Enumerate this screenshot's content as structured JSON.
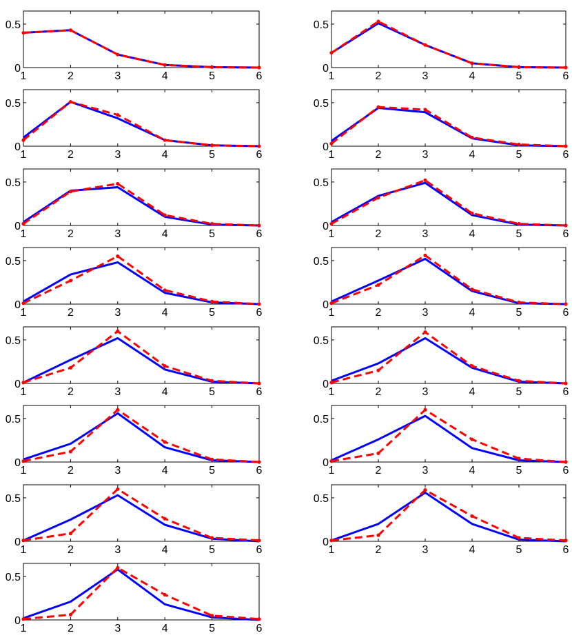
{
  "chart_data": [
    {
      "type": "line",
      "x": [
        1,
        2,
        3,
        4,
        5,
        6
      ],
      "ylim": [
        0,
        0.65
      ],
      "yticks": [
        0,
        0.5
      ],
      "xticks": [
        1,
        2,
        3,
        4,
        5,
        6
      ],
      "series": [
        {
          "color": "#0000ff",
          "linestyle": "solid",
          "values": [
            0.4,
            0.43,
            0.15,
            0.03,
            0.005,
            0.0
          ]
        },
        {
          "color": "#ff0000",
          "linestyle": "dashed",
          "values": [
            0.4,
            0.43,
            0.15,
            0.03,
            0.005,
            0.0
          ]
        }
      ]
    },
    {
      "type": "line",
      "x": [
        1,
        2,
        3,
        4,
        5,
        6
      ],
      "ylim": [
        0,
        0.65
      ],
      "yticks": [
        0,
        0.5
      ],
      "xticks": [
        1,
        2,
        3,
        4,
        5,
        6
      ],
      "series": [
        {
          "color": "#0000ff",
          "linestyle": "solid",
          "values": [
            0.17,
            0.51,
            0.26,
            0.05,
            0.005,
            0.0
          ]
        },
        {
          "color": "#ff0000",
          "linestyle": "dashed",
          "values": [
            0.17,
            0.53,
            0.26,
            0.05,
            0.005,
            0.0
          ]
        }
      ]
    },
    {
      "type": "line",
      "x": [
        1,
        2,
        3,
        4,
        5,
        6
      ],
      "ylim": [
        0,
        0.65
      ],
      "yticks": [
        0,
        0.5
      ],
      "xticks": [
        1,
        2,
        3,
        4,
        5,
        6
      ],
      "series": [
        {
          "color": "#0000ff",
          "linestyle": "solid",
          "values": [
            0.1,
            0.51,
            0.32,
            0.07,
            0.01,
            0.0
          ]
        },
        {
          "color": "#ff0000",
          "linestyle": "dashed",
          "values": [
            0.07,
            0.51,
            0.36,
            0.07,
            0.01,
            0.0
          ]
        }
      ]
    },
    {
      "type": "line",
      "x": [
        1,
        2,
        3,
        4,
        5,
        6
      ],
      "ylim": [
        0,
        0.65
      ],
      "yticks": [
        0,
        0.5
      ],
      "xticks": [
        1,
        2,
        3,
        4,
        5,
        6
      ],
      "series": [
        {
          "color": "#0000ff",
          "linestyle": "solid",
          "values": [
            0.06,
            0.44,
            0.39,
            0.09,
            0.01,
            0.0
          ]
        },
        {
          "color": "#ff0000",
          "linestyle": "dashed",
          "values": [
            0.03,
            0.45,
            0.42,
            0.1,
            0.02,
            0.0
          ]
        }
      ]
    },
    {
      "type": "line",
      "x": [
        1,
        2,
        3,
        4,
        5,
        6
      ],
      "ylim": [
        0,
        0.65
      ],
      "yticks": [
        0,
        0.5
      ],
      "xticks": [
        1,
        2,
        3,
        4,
        5,
        6
      ],
      "series": [
        {
          "color": "#0000ff",
          "linestyle": "solid",
          "values": [
            0.04,
            0.4,
            0.44,
            0.1,
            0.01,
            0.0
          ]
        },
        {
          "color": "#ff0000",
          "linestyle": "dashed",
          "values": [
            0.02,
            0.39,
            0.48,
            0.12,
            0.02,
            0.0
          ]
        }
      ]
    },
    {
      "type": "line",
      "x": [
        1,
        2,
        3,
        4,
        5,
        6
      ],
      "ylim": [
        0,
        0.65
      ],
      "yticks": [
        0,
        0.5
      ],
      "xticks": [
        1,
        2,
        3,
        4,
        5,
        6
      ],
      "series": [
        {
          "color": "#0000ff",
          "linestyle": "solid",
          "values": [
            0.04,
            0.34,
            0.49,
            0.12,
            0.01,
            0.0
          ]
        },
        {
          "color": "#ff0000",
          "linestyle": "dashed",
          "values": [
            0.02,
            0.32,
            0.52,
            0.14,
            0.02,
            0.0
          ]
        }
      ]
    },
    {
      "type": "line",
      "x": [
        1,
        2,
        3,
        4,
        5,
        6
      ],
      "ylim": [
        0,
        0.65
      ],
      "yticks": [
        0,
        0.5
      ],
      "xticks": [
        1,
        2,
        3,
        4,
        5,
        6
      ],
      "series": [
        {
          "color": "#0000ff",
          "linestyle": "solid",
          "values": [
            0.03,
            0.34,
            0.48,
            0.13,
            0.02,
            0.0
          ]
        },
        {
          "color": "#ff0000",
          "linestyle": "dashed",
          "values": [
            0.01,
            0.27,
            0.55,
            0.16,
            0.03,
            0.0
          ]
        }
      ]
    },
    {
      "type": "line",
      "x": [
        1,
        2,
        3,
        4,
        5,
        6
      ],
      "ylim": [
        0,
        0.65
      ],
      "yticks": [
        0,
        0.5
      ],
      "xticks": [
        1,
        2,
        3,
        4,
        5,
        6
      ],
      "series": [
        {
          "color": "#0000ff",
          "linestyle": "solid",
          "values": [
            0.03,
            0.27,
            0.52,
            0.15,
            0.01,
            0.0
          ]
        },
        {
          "color": "#ff0000",
          "linestyle": "dashed",
          "values": [
            0.01,
            0.22,
            0.56,
            0.17,
            0.02,
            0.0
          ]
        }
      ]
    },
    {
      "type": "line",
      "x": [
        1,
        2,
        3,
        4,
        5,
        6
      ],
      "ylim": [
        0,
        0.65
      ],
      "yticks": [
        0,
        0.5
      ],
      "xticks": [
        1,
        2,
        3,
        4,
        5,
        6
      ],
      "series": [
        {
          "color": "#0000ff",
          "linestyle": "solid",
          "values": [
            0.01,
            0.27,
            0.52,
            0.16,
            0.02,
            0.0
          ]
        },
        {
          "color": "#ff0000",
          "linestyle": "dashed",
          "values": [
            0.01,
            0.18,
            0.6,
            0.2,
            0.03,
            0.0
          ]
        }
      ]
    },
    {
      "type": "line",
      "x": [
        1,
        2,
        3,
        4,
        5,
        6
      ],
      "ylim": [
        0,
        0.65
      ],
      "yticks": [
        0,
        0.5
      ],
      "xticks": [
        1,
        2,
        3,
        4,
        5,
        6
      ],
      "series": [
        {
          "color": "#0000ff",
          "linestyle": "solid",
          "values": [
            0.03,
            0.23,
            0.52,
            0.18,
            0.02,
            0.0
          ]
        },
        {
          "color": "#ff0000",
          "linestyle": "dashed",
          "values": [
            0.01,
            0.15,
            0.59,
            0.2,
            0.03,
            0.0
          ]
        }
      ]
    },
    {
      "type": "line",
      "x": [
        1,
        2,
        3,
        4,
        5,
        6
      ],
      "ylim": [
        0,
        0.65
      ],
      "yticks": [
        0,
        0.5
      ],
      "xticks": [
        1,
        2,
        3,
        4,
        5,
        6
      ],
      "series": [
        {
          "color": "#0000ff",
          "linestyle": "solid",
          "values": [
            0.03,
            0.21,
            0.56,
            0.17,
            0.02,
            0.0
          ]
        },
        {
          "color": "#ff0000",
          "linestyle": "dashed",
          "values": [
            0.01,
            0.12,
            0.6,
            0.23,
            0.03,
            0.0
          ]
        }
      ]
    },
    {
      "type": "line",
      "x": [
        1,
        2,
        3,
        4,
        5,
        6
      ],
      "ylim": [
        0,
        0.65
      ],
      "yticks": [
        0,
        0.5
      ],
      "xticks": [
        1,
        2,
        3,
        4,
        5,
        6
      ],
      "series": [
        {
          "color": "#0000ff",
          "linestyle": "solid",
          "values": [
            0.02,
            0.26,
            0.53,
            0.16,
            0.02,
            0.0
          ]
        },
        {
          "color": "#ff0000",
          "linestyle": "dashed",
          "values": [
            0.01,
            0.1,
            0.6,
            0.26,
            0.04,
            0.0
          ]
        }
      ]
    },
    {
      "type": "line",
      "x": [
        1,
        2,
        3,
        4,
        5,
        6
      ],
      "ylim": [
        0,
        0.65
      ],
      "yticks": [
        0,
        0.5
      ],
      "xticks": [
        1,
        2,
        3,
        4,
        5,
        6
      ],
      "series": [
        {
          "color": "#0000ff",
          "linestyle": "solid",
          "values": [
            0.01,
            0.25,
            0.53,
            0.19,
            0.03,
            0.0
          ]
        },
        {
          "color": "#ff0000",
          "linestyle": "dashed",
          "values": [
            0.01,
            0.09,
            0.6,
            0.26,
            0.04,
            0.01
          ]
        }
      ]
    },
    {
      "type": "line",
      "x": [
        1,
        2,
        3,
        4,
        5,
        6
      ],
      "ylim": [
        0,
        0.65
      ],
      "yticks": [
        0,
        0.5
      ],
      "xticks": [
        1,
        2,
        3,
        4,
        5,
        6
      ],
      "series": [
        {
          "color": "#0000ff",
          "linestyle": "solid",
          "values": [
            0.01,
            0.2,
            0.56,
            0.2,
            0.02,
            0.0
          ]
        },
        {
          "color": "#ff0000",
          "linestyle": "dashed",
          "values": [
            0.01,
            0.07,
            0.59,
            0.29,
            0.04,
            0.01
          ]
        }
      ]
    },
    {
      "type": "line",
      "x": [
        1,
        2,
        3,
        4,
        5,
        6
      ],
      "ylim": [
        0,
        0.65
      ],
      "yticks": [
        0,
        0.5
      ],
      "xticks": [
        1,
        2,
        3,
        4,
        5,
        6
      ],
      "series": [
        {
          "color": "#0000ff",
          "linestyle": "solid",
          "values": [
            0.02,
            0.21,
            0.58,
            0.18,
            0.03,
            0.0
          ]
        },
        {
          "color": "#ff0000",
          "linestyle": "dashed",
          "values": [
            0.01,
            0.06,
            0.6,
            0.29,
            0.05,
            0.01
          ]
        }
      ]
    }
  ]
}
